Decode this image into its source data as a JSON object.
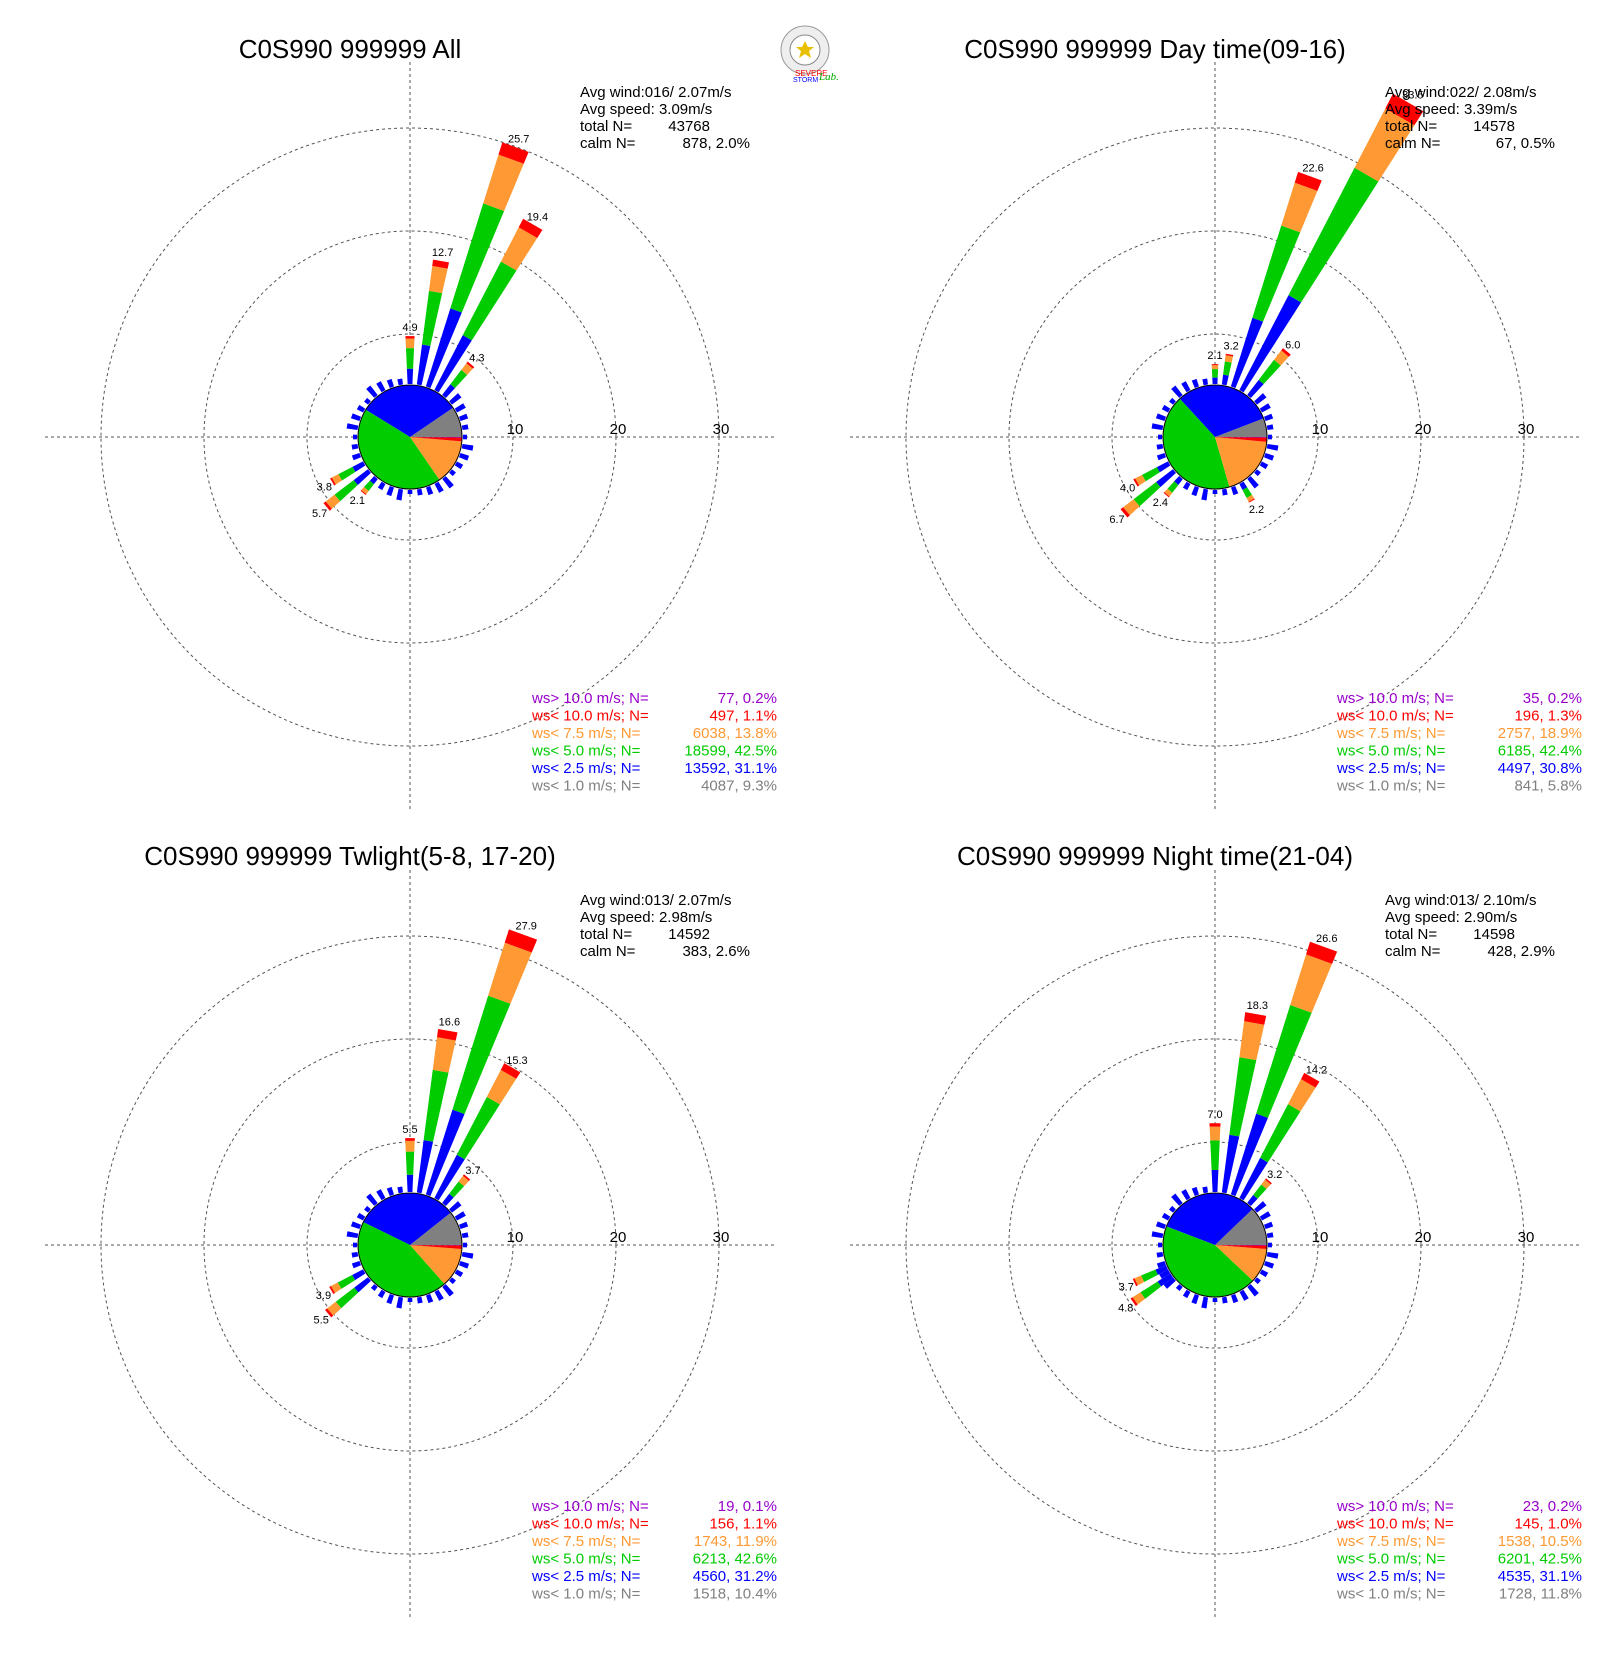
{
  "logo": {
    "text_top": "SEVERE",
    "text_bottom": "STORM",
    "text_lab": "Lab."
  },
  "colors": {
    "gt10": "#9900cc",
    "lt10": "#ff0000",
    "lt75": "#ff9933",
    "lt50": "#00cc00",
    "lt25": "#0000ff",
    "lt10ms": "#808080"
  },
  "chart_data": [
    {
      "type": "windrose",
      "title": "C0S990 999999 All",
      "rings": [
        "10",
        "20",
        "30"
      ],
      "avg_wind": "Avg wind:016/ 2.07m/s",
      "avg_speed": "Avg speed: 3.09m/s",
      "total_n_label": "total N=",
      "total_n": "43768",
      "calm_n_label": "calm N=",
      "calm_n": "878,   2.0%",
      "legend": [
        {
          "label": "ws> 10.0 m/s; N=",
          "value": "77,  0.2%",
          "color": "#9900cc"
        },
        {
          "label": "ws< 10.0 m/s; N=",
          "value": "497,  1.1%",
          "color": "#ff0000"
        },
        {
          "label": "ws<  7.5 m/s; N=",
          "value": "6038, 13.8%",
          "color": "#ff9933"
        },
        {
          "label": "ws<  5.0 m/s; N=",
          "value": "18599, 42.5%",
          "color": "#00cc00"
        },
        {
          "label": "ws<  2.5 m/s; N=",
          "value": "13592, 31.1%",
          "color": "#0000ff"
        },
        {
          "label": "ws<  1.0 m/s; N=",
          "value": "4087,  9.3%",
          "color": "#808080"
        }
      ],
      "pie": [
        9.3,
        31.1,
        42.5,
        13.8,
        1.1,
        0.2
      ],
      "bars": [
        {
          "dir": 0,
          "value": 4.9,
          "label": "4.9"
        },
        {
          "dir": 10,
          "value": 12.7,
          "label": "12.7"
        },
        {
          "dir": 20,
          "value": 25.7,
          "label": "25.7"
        },
        {
          "dir": 30,
          "value": 19.4,
          "label": "19.4"
        },
        {
          "dir": 40,
          "value": 4.3,
          "label": "4.3"
        },
        {
          "dir": 240,
          "value": 3.8,
          "label": "3.8"
        },
        {
          "dir": 230,
          "value": 5.7,
          "label": "5.7"
        },
        {
          "dir": 220,
          "value": 2.1,
          "label": "2.1"
        }
      ]
    },
    {
      "type": "windrose",
      "title": "C0S990 999999 Day time(09-16)",
      "rings": [
        "10",
        "20",
        "30"
      ],
      "avg_wind": "Avg wind:022/ 2.08m/s",
      "avg_speed": "Avg speed: 3.39m/s",
      "total_n_label": "total N=",
      "total_n": "14578",
      "calm_n_label": "calm N=",
      "calm_n": "67,   0.5%",
      "legend": [
        {
          "label": "ws> 10.0 m/s; N=",
          "value": "35,  0.2%",
          "color": "#9900cc"
        },
        {
          "label": "ws< 10.0 m/s; N=",
          "value": "196,  1.3%",
          "color": "#ff0000"
        },
        {
          "label": "ws<  7.5 m/s; N=",
          "value": "2757, 18.9%",
          "color": "#ff9933"
        },
        {
          "label": "ws<  5.0 m/s; N=",
          "value": "6185, 42.4%",
          "color": "#00cc00"
        },
        {
          "label": "ws<  2.5 m/s; N=",
          "value": "4497, 30.8%",
          "color": "#0000ff"
        },
        {
          "label": "ws<  1.0 m/s; N=",
          "value": "841,  5.8%",
          "color": "#808080"
        }
      ],
      "pie": [
        5.8,
        30.8,
        42.4,
        18.9,
        1.3,
        0.2
      ],
      "bars": [
        {
          "dir": 0,
          "value": 2.1,
          "label": "2.1"
        },
        {
          "dir": 10,
          "value": 3.2,
          "label": "3.2"
        },
        {
          "dir": 20,
          "value": 22.6,
          "label": "22.6"
        },
        {
          "dir": 30,
          "value": 33.5,
          "label": "33.5"
        },
        {
          "dir": 40,
          "value": 6.0,
          "label": "6.0"
        },
        {
          "dir": 240,
          "value": 4.0,
          "label": "4.0"
        },
        {
          "dir": 230,
          "value": 6.7,
          "label": "6.7"
        },
        {
          "dir": 220,
          "value": 2.4,
          "label": "2.4"
        },
        {
          "dir": 150,
          "value": 2.2,
          "label": "2.2"
        }
      ]
    },
    {
      "type": "windrose",
      "title": "C0S990 999999 Twlight(5-8, 17-20)",
      "rings": [
        "10",
        "20",
        "30"
      ],
      "avg_wind": "Avg wind:013/ 2.07m/s",
      "avg_speed": "Avg speed: 2.98m/s",
      "total_n_label": "total N=",
      "total_n": "14592",
      "calm_n_label": "calm N=",
      "calm_n": "383,   2.6%",
      "legend": [
        {
          "label": "ws> 10.0 m/s; N=",
          "value": "19,  0.1%",
          "color": "#9900cc"
        },
        {
          "label": "ws< 10.0 m/s; N=",
          "value": "156,  1.1%",
          "color": "#ff0000"
        },
        {
          "label": "ws<  7.5 m/s; N=",
          "value": "1743, 11.9%",
          "color": "#ff9933"
        },
        {
          "label": "ws<  5.0 m/s; N=",
          "value": "6213, 42.6%",
          "color": "#00cc00"
        },
        {
          "label": "ws<  2.5 m/s; N=",
          "value": "4560, 31.2%",
          "color": "#0000ff"
        },
        {
          "label": "ws<  1.0 m/s; N=",
          "value": "1518, 10.4%",
          "color": "#808080"
        }
      ],
      "pie": [
        10.4,
        31.2,
        42.6,
        11.9,
        1.1,
        0.1
      ],
      "bars": [
        {
          "dir": 0,
          "value": 5.5,
          "label": "5.5"
        },
        {
          "dir": 10,
          "value": 16.6,
          "label": "16.6"
        },
        {
          "dir": 20,
          "value": 27.9,
          "label": "27.9"
        },
        {
          "dir": 30,
          "value": 15.3,
          "label": "15.3"
        },
        {
          "dir": 40,
          "value": 3.7,
          "label": "3.7"
        },
        {
          "dir": 240,
          "value": 3.9,
          "label": "3.9"
        },
        {
          "dir": 230,
          "value": 5.5,
          "label": "5.5"
        }
      ]
    },
    {
      "type": "windrose",
      "title": "C0S990 999999 Night time(21-04)",
      "rings": [
        "10",
        "20",
        "30"
      ],
      "avg_wind": "Avg wind:013/ 2.10m/s",
      "avg_speed": "Avg speed: 2.90m/s",
      "total_n_label": "total N=",
      "total_n": "14598",
      "calm_n_label": "calm N=",
      "calm_n": "428,   2.9%",
      "legend": [
        {
          "label": "ws> 10.0 m/s; N=",
          "value": "23,  0.2%",
          "color": "#9900cc"
        },
        {
          "label": "ws< 10.0 m/s; N=",
          "value": "145,  1.0%",
          "color": "#ff0000"
        },
        {
          "label": "ws<  7.5 m/s; N=",
          "value": "1538, 10.5%",
          "color": "#ff9933"
        },
        {
          "label": "ws<  5.0 m/s; N=",
          "value": "6201, 42.5%",
          "color": "#00cc00"
        },
        {
          "label": "ws<  2.5 m/s; N=",
          "value": "4535, 31.1%",
          "color": "#0000ff"
        },
        {
          "label": "ws<  1.0 m/s; N=",
          "value": "1728, 11.8%",
          "color": "#808080"
        }
      ],
      "pie": [
        11.8,
        31.1,
        42.5,
        10.5,
        1.0,
        0.2
      ],
      "bars": [
        {
          "dir": 0,
          "value": 7.0,
          "label": "7.0"
        },
        {
          "dir": 10,
          "value": 18.3,
          "label": "18.3"
        },
        {
          "dir": 20,
          "value": 26.6,
          "label": "26.6"
        },
        {
          "dir": 30,
          "value": 14.2,
          "label": "14.2"
        },
        {
          "dir": 40,
          "value": 3.2,
          "label": "3.2"
        },
        {
          "dir": 245,
          "value": 3.7,
          "label": "3.7"
        },
        {
          "dir": 235,
          "value": 4.8,
          "label": "4.8"
        }
      ]
    }
  ]
}
